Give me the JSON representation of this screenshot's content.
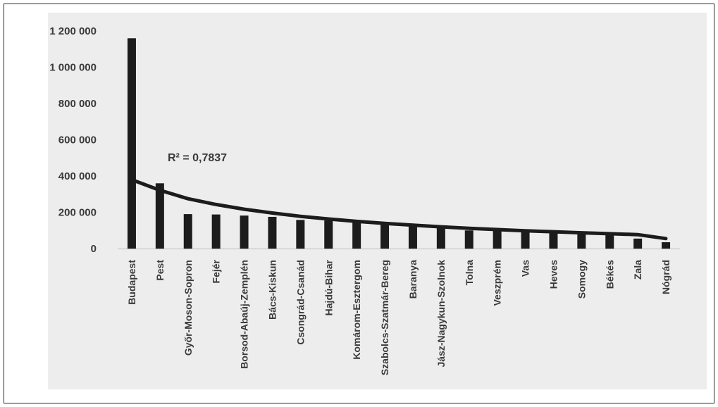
{
  "chart_data": {
    "type": "bar",
    "categories": [
      "Budapest",
      "Pest",
      "Győr-Moson-Sopron",
      "Fejér",
      "Borsod-Abaúj-Zemplén",
      "Bács-Kiskun",
      "Csongrád-Csanád",
      "Hajdú-Bihar",
      "Komárom-Esztergom",
      "Szabolcs-Szatmár-Bereg",
      "Baranya",
      "Jász-Nagykun-Szolnok",
      "Tolna",
      "Veszprém",
      "Vas",
      "Heves",
      "Somogy",
      "Békés",
      "Zala",
      "Nógrád"
    ],
    "values": [
      1160000,
      360000,
      190000,
      188000,
      182000,
      175000,
      158000,
      155000,
      150000,
      140000,
      130000,
      115000,
      100000,
      97000,
      93000,
      88000,
      82000,
      78000,
      55000,
      35000
    ],
    "trendline": {
      "type": "power",
      "values": [
        380000,
        322000,
        275000,
        243000,
        217000,
        196000,
        178000,
        163000,
        150000,
        139000,
        129000,
        120000,
        112000,
        105000,
        98000,
        93000,
        87000,
        82000,
        77000,
        55000
      ]
    },
    "annotation": "R² = 0,7837",
    "ylim": [
      0,
      1200000
    ],
    "yticks": [
      0,
      200000,
      400000,
      600000,
      800000,
      1000000,
      1200000
    ],
    "ytick_labels": [
      "0",
      "200 000",
      "400 000",
      "600 000",
      "800 000",
      "1 000 000",
      "1 200 000"
    ],
    "xlabel": "",
    "ylabel": "",
    "title": "",
    "grid": false,
    "colors": {
      "bar": "#1c1c1c",
      "trendline": "#1c1c1c",
      "text": "#3a3a3a",
      "plot_background": "#ededed"
    }
  }
}
